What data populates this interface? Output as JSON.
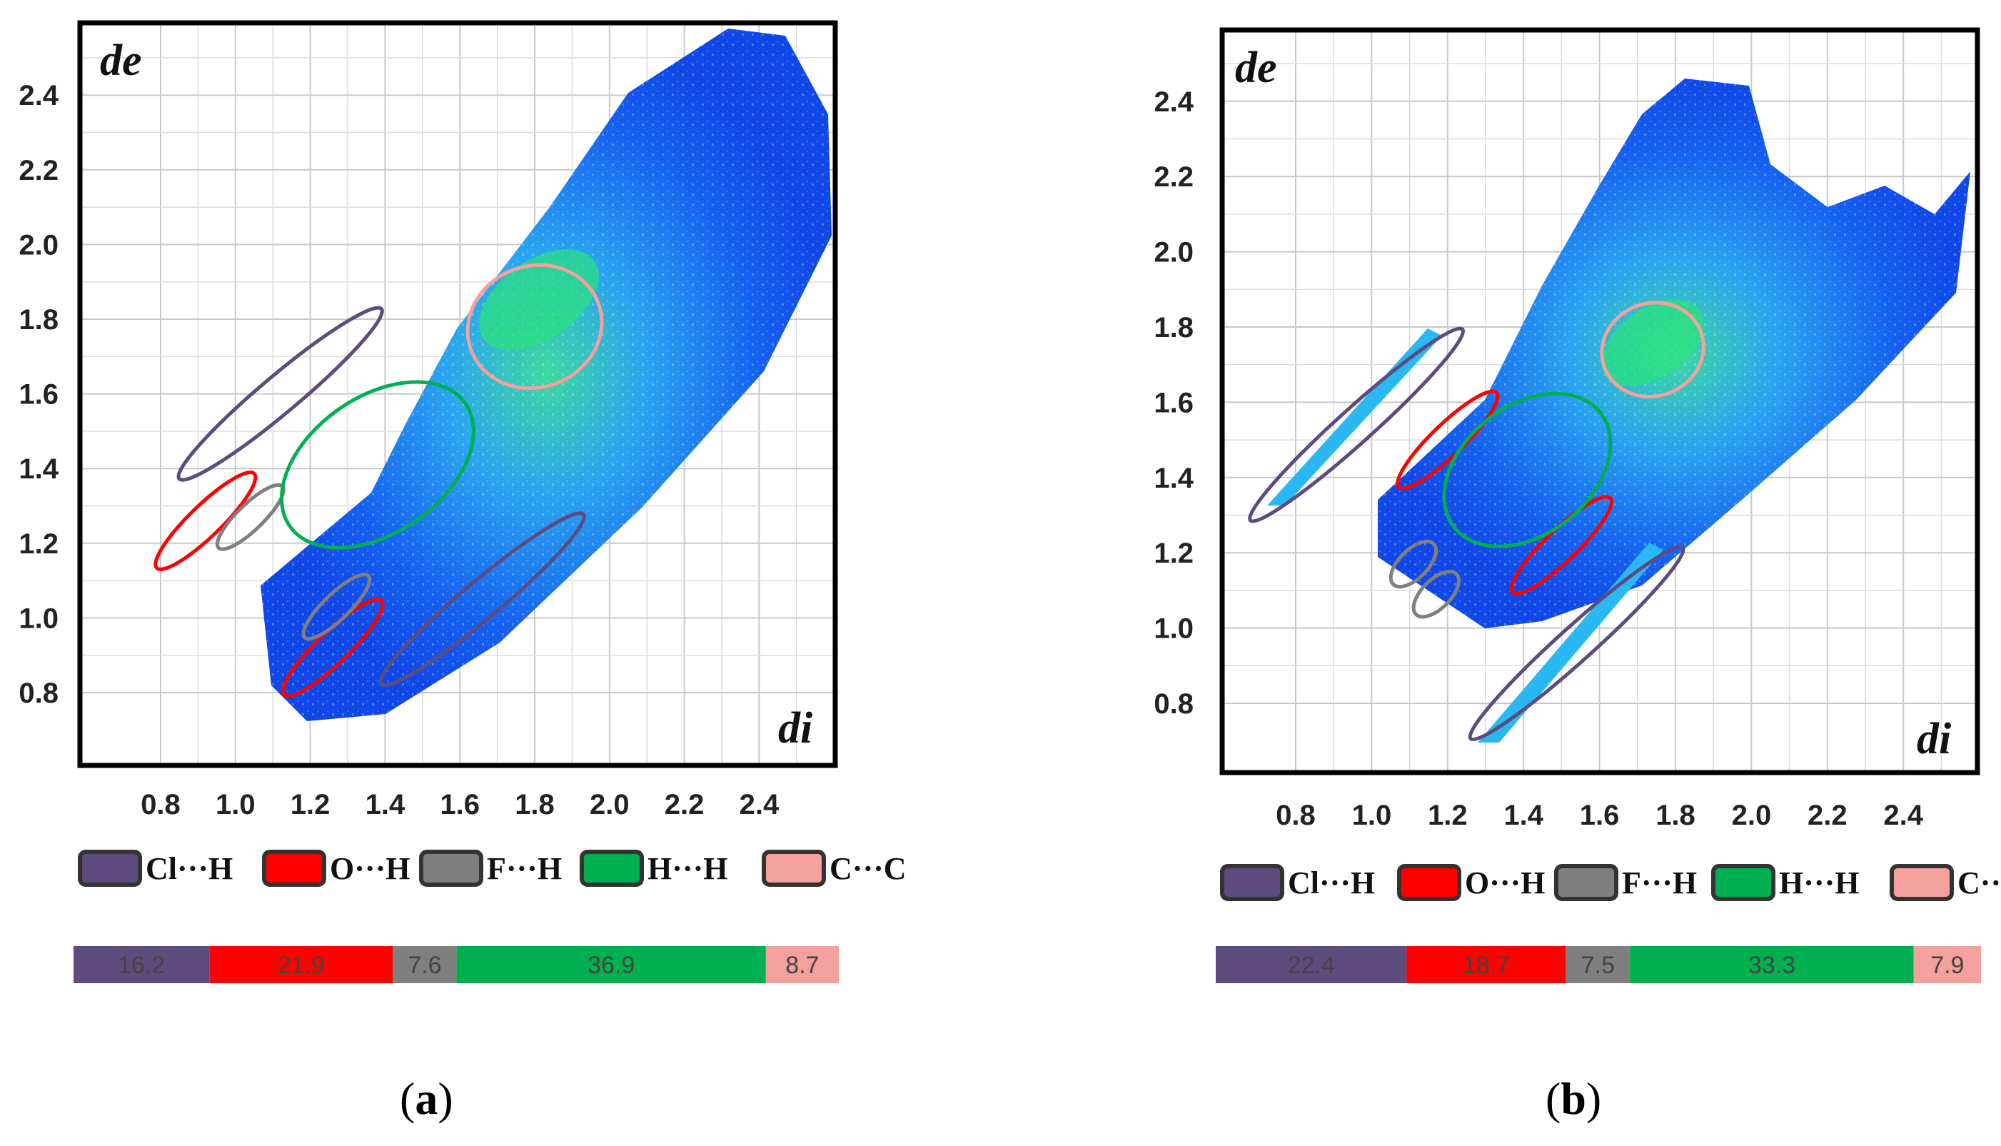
{
  "chart_data": [
    {
      "type": "scatter",
      "panel_label": "(a)",
      "label_prefix": "(",
      "label_letter": "a",
      "label_suffix": ")",
      "xlabel": "di",
      "ylabel": "de",
      "xlim": [
        0.6,
        2.6
      ],
      "ylim": [
        0.6,
        2.6
      ],
      "x_ticks": [
        "0.8",
        "1.0",
        "1.2",
        "1.4",
        "1.6",
        "1.8",
        "2.0",
        "2.2",
        "2.4"
      ],
      "y_ticks": [
        "0.8",
        "1.0",
        "1.2",
        "1.4",
        "1.6",
        "1.8",
        "2.0",
        "2.2",
        "2.4"
      ],
      "grid": true,
      "legend": [
        {
          "label": "Cl···H",
          "color": "#5e4b7e"
        },
        {
          "label": "O···H",
          "color": "#ff0000"
        },
        {
          "label": "F···H",
          "color": "#7f7f7f"
        },
        {
          "label": "H···H",
          "color": "#00b050"
        },
        {
          "label": "C···C",
          "color": "#f4a09c"
        }
      ],
      "contributions": [
        {
          "contact": "Cl···H",
          "percent": 16.2,
          "label": "16.2",
          "color": "#5e4b7e"
        },
        {
          "contact": "O···H",
          "percent": 21.9,
          "label": "21.9",
          "color": "#ff0000"
        },
        {
          "contact": "F···H",
          "percent": 7.6,
          "label": "7.6",
          "color": "#7f7f7f"
        },
        {
          "contact": "H···H",
          "percent": 36.9,
          "label": "36.9",
          "color": "#00b050"
        },
        {
          "contact": "C···C",
          "percent": 8.7,
          "label": "8.7",
          "color": "#f4a09c"
        }
      ],
      "regions": [
        {
          "contact": "Cl···H",
          "di": 1.12,
          "de": 1.6,
          "color": "#5e4b7e"
        },
        {
          "contact": "Cl···H",
          "di": 1.66,
          "de": 1.05,
          "color": "#5e4b7e"
        },
        {
          "contact": "O···H",
          "di": 0.92,
          "de": 1.26,
          "color": "#ff0000"
        },
        {
          "contact": "O···H",
          "di": 1.26,
          "de": 0.92,
          "color": "#ff0000"
        },
        {
          "contact": "F···H",
          "di": 1.04,
          "de": 1.27,
          "color": "#7f7f7f"
        },
        {
          "contact": "F···H",
          "di": 1.27,
          "de": 1.03,
          "color": "#7f7f7f"
        },
        {
          "contact": "H···H",
          "di": 1.38,
          "de": 1.41,
          "color": "#00b050"
        },
        {
          "contact": "C···C",
          "di": 1.8,
          "de": 1.78,
          "color": "#f4a09c"
        }
      ]
    },
    {
      "type": "scatter",
      "panel_label": "(b)",
      "label_prefix": "(",
      "label_letter": "b",
      "label_suffix": ")",
      "xlabel": "di",
      "ylabel": "de",
      "xlim": [
        0.6,
        2.6
      ],
      "ylim": [
        0.6,
        2.6
      ],
      "x_ticks": [
        "0.8",
        "1.0",
        "1.2",
        "1.4",
        "1.6",
        "1.8",
        "2.0",
        "2.2",
        "2.4"
      ],
      "y_ticks": [
        "0.8",
        "1.0",
        "1.2",
        "1.4",
        "1.6",
        "1.8",
        "2.0",
        "2.2",
        "2.4"
      ],
      "grid": true,
      "legend": [
        {
          "label": "Cl···H",
          "color": "#5e4b7e"
        },
        {
          "label": "O···H",
          "color": "#ff0000"
        },
        {
          "label": "F···H",
          "color": "#7f7f7f"
        },
        {
          "label": "H···H",
          "color": "#00b050"
        },
        {
          "label": "C···C",
          "color": "#f4a09c"
        }
      ],
      "contributions": [
        {
          "contact": "Cl···H",
          "percent": 22.4,
          "label": "22.4",
          "color": "#5e4b7e"
        },
        {
          "contact": "O···H",
          "percent": 18.7,
          "label": "18.7",
          "color": "#ff0000"
        },
        {
          "contact": "F···H",
          "percent": 7.5,
          "label": "7.5",
          "color": "#7f7f7f"
        },
        {
          "contact": "H···H",
          "percent": 33.3,
          "label": "33.3",
          "color": "#00b050"
        },
        {
          "contact": "C···C",
          "percent": 7.9,
          "label": "7.9",
          "color": "#f4a09c"
        }
      ],
      "regions": [
        {
          "contact": "Cl···H",
          "di": 0.96,
          "de": 1.54,
          "color": "#5e4b7e"
        },
        {
          "contact": "Cl···H",
          "di": 1.54,
          "de": 0.96,
          "color": "#5e4b7e"
        },
        {
          "contact": "O···H",
          "di": 1.2,
          "de": 1.5,
          "color": "#ff0000"
        },
        {
          "contact": "O···H",
          "di": 1.5,
          "de": 1.22,
          "color": "#ff0000"
        },
        {
          "contact": "F···H",
          "di": 1.11,
          "de": 1.17,
          "color": "#7f7f7f"
        },
        {
          "contact": "F···H",
          "di": 1.17,
          "de": 1.09,
          "color": "#7f7f7f"
        },
        {
          "contact": "H···H",
          "di": 1.41,
          "de": 1.42,
          "color": "#00b050"
        },
        {
          "contact": "C···C",
          "di": 1.74,
          "de": 1.74,
          "color": "#f4a09c"
        }
      ]
    }
  ]
}
